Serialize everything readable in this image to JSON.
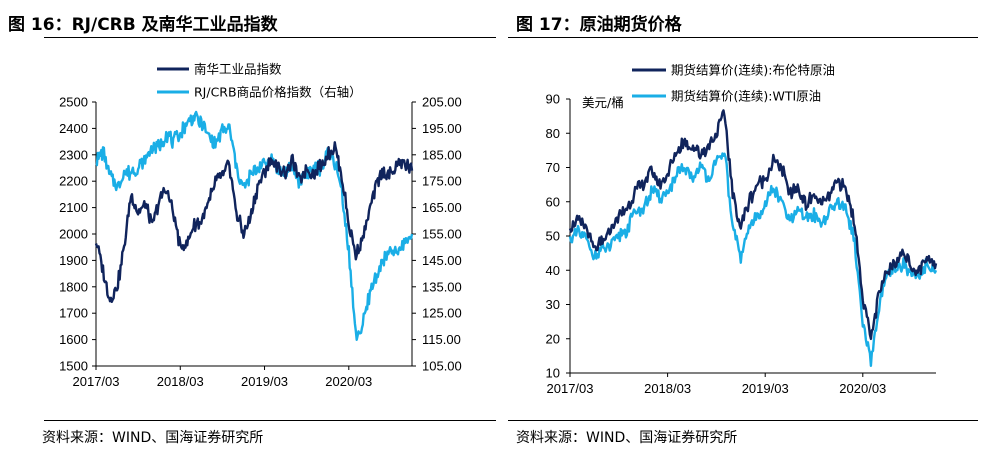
{
  "colors": {
    "navy": "#10245c",
    "cyan": "#1aaee6"
  },
  "left": {
    "title": "图 16：RJ/CRB 及南华工业品指数",
    "source": "资料来源：WIND、国海证券研究所"
  },
  "right": {
    "title": "图 17：原油期货价格",
    "source": "资料来源：WIND、国海证券研究所"
  },
  "chart_data": [
    {
      "type": "line",
      "title": "RJ/CRB 及南华工业品指数",
      "x_ticks": [
        "2017/03",
        "2018/03",
        "2019/03",
        "2020/03"
      ],
      "x_range": [
        "2017/03",
        "2020/12"
      ],
      "y_left": {
        "range": [
          1500,
          2500
        ],
        "ticks": [
          "1500",
          "1600",
          "1700",
          "1800",
          "1900",
          "2000",
          "2100",
          "2200",
          "2300",
          "2400",
          "2500"
        ]
      },
      "y_right": {
        "range": [
          105,
          205
        ],
        "ticks": [
          "105.00",
          "115.00",
          "125.00",
          "135.00",
          "145.00",
          "155.00",
          "165.00",
          "175.00",
          "185.00",
          "195.00",
          "205.00"
        ],
        "label": ""
      },
      "legend_position": "top-left",
      "series": [
        {
          "name": "南华工业品指数",
          "axis": "left",
          "color": "#10245c",
          "points": [
            [
              "2017/03",
              1980
            ],
            [
              "2017/04",
              1860
            ],
            [
              "2017/05",
              1750
            ],
            [
              "2017/06",
              1800
            ],
            [
              "2017/07",
              1950
            ],
            [
              "2017/08",
              2150
            ],
            [
              "2017/09",
              2080
            ],
            [
              "2017/10",
              2110
            ],
            [
              "2017/11",
              2030
            ],
            [
              "2017/12",
              2130
            ],
            [
              "2018/01",
              2170
            ],
            [
              "2018/02",
              2080
            ],
            [
              "2018/03",
              1950
            ],
            [
              "2018/04",
              1960
            ],
            [
              "2018/05",
              2040
            ],
            [
              "2018/06",
              2050
            ],
            [
              "2018/07",
              2110
            ],
            [
              "2018/08",
              2200
            ],
            [
              "2018/09",
              2220
            ],
            [
              "2018/10",
              2260
            ],
            [
              "2018/11",
              2080
            ],
            [
              "2018/12",
              2000
            ],
            [
              "2019/01",
              2060
            ],
            [
              "2019/02",
              2180
            ],
            [
              "2019/03",
              2240
            ],
            [
              "2019/04",
              2280
            ],
            [
              "2019/05",
              2250
            ],
            [
              "2019/06",
              2230
            ],
            [
              "2019/07",
              2280
            ],
            [
              "2019/08",
              2200
            ],
            [
              "2019/09",
              2250
            ],
            [
              "2019/10",
              2230
            ],
            [
              "2019/11",
              2260
            ],
            [
              "2019/12",
              2300
            ],
            [
              "2020/01",
              2330
            ],
            [
              "2020/02",
              2220
            ],
            [
              "2020/03",
              2040
            ],
            [
              "2020/04",
              1920
            ],
            [
              "2020/05",
              1990
            ],
            [
              "2020/06",
              2090
            ],
            [
              "2020/07",
              2200
            ],
            [
              "2020/08",
              2240
            ],
            [
              "2020/09",
              2220
            ],
            [
              "2020/10",
              2270
            ],
            [
              "2020/11",
              2270
            ],
            [
              "2020/12",
              2240
            ]
          ]
        },
        {
          "name": "RJ/CRB商品价格指数（右轴）",
          "axis": "right",
          "color": "#1aaee6",
          "points": [
            [
              "2017/03",
              183
            ],
            [
              "2017/04",
              186
            ],
            [
              "2017/05",
              177
            ],
            [
              "2017/06",
              173
            ],
            [
              "2017/07",
              178
            ],
            [
              "2017/08",
              178
            ],
            [
              "2017/09",
              180
            ],
            [
              "2017/10",
              183
            ],
            [
              "2017/11",
              188
            ],
            [
              "2017/12",
              188
            ],
            [
              "2018/01",
              193
            ],
            [
              "2018/02",
              190
            ],
            [
              "2018/03",
              193
            ],
            [
              "2018/04",
              197
            ],
            [
              "2018/05",
              200
            ],
            [
              "2018/06",
              197
            ],
            [
              "2018/07",
              192
            ],
            [
              "2018/08",
              189
            ],
            [
              "2018/09",
              194
            ],
            [
              "2018/10",
              195
            ],
            [
              "2018/11",
              180
            ],
            [
              "2018/12",
              172
            ],
            [
              "2019/01",
              177
            ],
            [
              "2019/02",
              180
            ],
            [
              "2019/03",
              182
            ],
            [
              "2019/04",
              184
            ],
            [
              "2019/05",
              179
            ],
            [
              "2019/06",
              178
            ],
            [
              "2019/07",
              180
            ],
            [
              "2019/08",
              175
            ],
            [
              "2019/09",
              178
            ],
            [
              "2019/10",
              180
            ],
            [
              "2019/11",
              180
            ],
            [
              "2019/12",
              185
            ],
            [
              "2020/01",
              182
            ],
            [
              "2020/02",
              172
            ],
            [
              "2020/03",
              148
            ],
            [
              "2020/04",
              116
            ],
            [
              "2020/05",
              120
            ],
            [
              "2020/06",
              133
            ],
            [
              "2020/07",
              140
            ],
            [
              "2020/08",
              145
            ],
            [
              "2020/09",
              148
            ],
            [
              "2020/10",
              148
            ],
            [
              "2020/11",
              152
            ],
            [
              "2020/12",
              155
            ]
          ]
        }
      ]
    },
    {
      "type": "line",
      "title": "原油期货价格",
      "x_ticks": [
        "2017/03",
        "2018/03",
        "2019/03",
        "2020/03"
      ],
      "x_range": [
        "2017/03",
        "2020/12"
      ],
      "y": {
        "range": [
          10,
          90
        ],
        "ticks": [
          "10",
          "20",
          "30",
          "40",
          "50",
          "60",
          "70",
          "80",
          "90"
        ],
        "unit": "美元/桶"
      },
      "legend_position": "top-left",
      "series": [
        {
          "name": "期货结算价(连续):布伦特原油",
          "color": "#10245c",
          "points": [
            [
              "2017/03",
              53
            ],
            [
              "2017/04",
              54
            ],
            [
              "2017/05",
              52
            ],
            [
              "2017/06",
              46
            ],
            [
              "2017/07",
              48
            ],
            [
              "2017/08",
              52
            ],
            [
              "2017/09",
              56
            ],
            [
              "2017/10",
              58
            ],
            [
              "2017/11",
              63
            ],
            [
              "2017/12",
              65
            ],
            [
              "2018/01",
              69
            ],
            [
              "2018/02",
              65
            ],
            [
              "2018/03",
              68
            ],
            [
              "2018/04",
              74
            ],
            [
              "2018/05",
              78
            ],
            [
              "2018/06",
              76
            ],
            [
              "2018/07",
              74
            ],
            [
              "2018/08",
              76
            ],
            [
              "2018/09",
              80
            ],
            [
              "2018/10",
              86
            ],
            [
              "2018/11",
              62
            ],
            [
              "2018/12",
              53
            ],
            [
              "2019/01",
              60
            ],
            [
              "2019/02",
              65
            ],
            [
              "2019/03",
              67
            ],
            [
              "2019/04",
              72
            ],
            [
              "2019/05",
              70
            ],
            [
              "2019/06",
              62
            ],
            [
              "2019/07",
              64
            ],
            [
              "2019/08",
              59
            ],
            [
              "2019/09",
              62
            ],
            [
              "2019/10",
              59
            ],
            [
              "2019/11",
              62
            ],
            [
              "2019/12",
              66
            ],
            [
              "2020/01",
              63
            ],
            [
              "2020/02",
              54
            ],
            [
              "2020/03",
              32
            ],
            [
              "2020/04",
              20
            ],
            [
              "2020/05",
              33
            ],
            [
              "2020/06",
              40
            ],
            [
              "2020/07",
              43
            ],
            [
              "2020/08",
              45
            ],
            [
              "2020/09",
              41
            ],
            [
              "2020/10",
              40
            ],
            [
              "2020/11",
              44
            ],
            [
              "2020/12",
              42
            ]
          ]
        },
        {
          "name": "期货结算价(连续):WTI原油",
          "color": "#1aaee6",
          "points": [
            [
              "2017/03",
              49
            ],
            [
              "2017/04",
              51
            ],
            [
              "2017/05",
              49
            ],
            [
              "2017/06",
              44
            ],
            [
              "2017/07",
              46
            ],
            [
              "2017/08",
              47
            ],
            [
              "2017/09",
              50
            ],
            [
              "2017/10",
              52
            ],
            [
              "2017/11",
              57
            ],
            [
              "2017/12",
              58
            ],
            [
              "2018/01",
              63
            ],
            [
              "2018/02",
              61
            ],
            [
              "2018/03",
              63
            ],
            [
              "2018/04",
              67
            ],
            [
              "2018/05",
              70
            ],
            [
              "2018/06",
              67
            ],
            [
              "2018/07",
              70
            ],
            [
              "2018/08",
              67
            ],
            [
              "2018/09",
              71
            ],
            [
              "2018/10",
              75
            ],
            [
              "2018/11",
              52
            ],
            [
              "2018/12",
              44
            ],
            [
              "2019/01",
              52
            ],
            [
              "2019/02",
              56
            ],
            [
              "2019/03",
              59
            ],
            [
              "2019/04",
              64
            ],
            [
              "2019/05",
              60
            ],
            [
              "2019/06",
              54
            ],
            [
              "2019/07",
              57
            ],
            [
              "2019/08",
              55
            ],
            [
              "2019/09",
              56
            ],
            [
              "2019/10",
              54
            ],
            [
              "2019/11",
              57
            ],
            [
              "2019/12",
              60
            ],
            [
              "2020/01",
              58
            ],
            [
              "2020/02",
              48
            ],
            [
              "2020/03",
              24
            ],
            [
              "2020/04",
              13
            ],
            [
              "2020/05",
              30
            ],
            [
              "2020/06",
              38
            ],
            [
              "2020/07",
              40
            ],
            [
              "2020/08",
              42
            ],
            [
              "2020/09",
              39
            ],
            [
              "2020/10",
              38
            ],
            [
              "2020/11",
              42
            ],
            [
              "2020/12",
              40
            ]
          ]
        }
      ]
    }
  ]
}
